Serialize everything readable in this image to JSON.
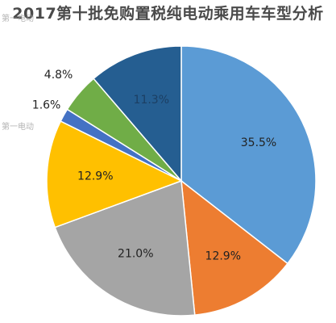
{
  "title": "2017第十批免购置税纯电动乘用车车型分析",
  "watermark": "第一电动",
  "chart_data": {
    "type": "pie",
    "title": "2017第十批免购置税纯电动乘用车车型分析",
    "unit": "%",
    "slices": [
      {
        "label": "35.5%",
        "value": 35.5,
        "color": "#5b9bd5"
      },
      {
        "label": "12.9%",
        "value": 12.9,
        "color": "#ed7d31"
      },
      {
        "label": "21.0%",
        "value": 21.0,
        "color": "#a5a5a5"
      },
      {
        "label": "12.9%",
        "value": 12.9,
        "color": "#ffc000"
      },
      {
        "label": "1.6%",
        "value": 1.6,
        "color": "#4472c4"
      },
      {
        "label": "4.8%",
        "value": 4.8,
        "color": "#70ad47"
      },
      {
        "label": "11.3%",
        "value": 11.3,
        "color": "#255e91"
      }
    ],
    "legend": "none"
  }
}
